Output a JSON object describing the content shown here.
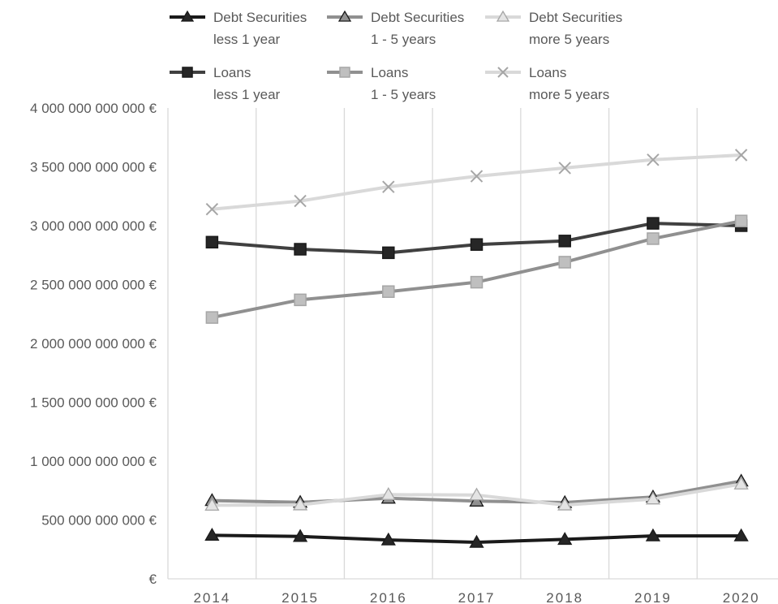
{
  "chart_data": {
    "type": "line",
    "title": "",
    "xlabel": "",
    "ylabel": "",
    "categories": [
      "2014",
      "2015",
      "2016",
      "2017",
      "2018",
      "2019",
      "2020"
    ],
    "ylim": [
      0,
      4000000000000
    ],
    "y_ticks": [
      {
        "value": 0,
        "label": "€"
      },
      {
        "value": 500000000000,
        "label": "500 000 000 000 €"
      },
      {
        "value": 1000000000000,
        "label": "1 000 000 000 000 €"
      },
      {
        "value": 1500000000000,
        "label": "1 500 000 000 000 €"
      },
      {
        "value": 2000000000000,
        "label": "2 000 000 000 000 €"
      },
      {
        "value": 2500000000000,
        "label": "2 500 000 000 000 €"
      },
      {
        "value": 3000000000000,
        "label": "3 000 000 000 000 €"
      },
      {
        "value": 3500000000000,
        "label": "3 500 000 000 000 €"
      },
      {
        "value": 4000000000000,
        "label": "4 000 000 000 000 €"
      }
    ],
    "grid": "vertical",
    "legend_position": "top",
    "series": [
      {
        "name": "Debt Securities less 1 year",
        "legend_lines": [
          "Debt Securities",
          "less 1 year"
        ],
        "color": "#1a1a1a",
        "marker": "triangle-filled",
        "marker_fill": "#262626",
        "values": [
          370000000000,
          360000000000,
          330000000000,
          310000000000,
          335000000000,
          365000000000,
          365000000000
        ]
      },
      {
        "name": "Debt Securities 1 - 5 years",
        "legend_lines": [
          "Debt Securities",
          "1 - 5 years"
        ],
        "color": "#909090",
        "marker": "triangle-filled",
        "marker_fill": "#909090",
        "values": [
          665000000000,
          650000000000,
          685000000000,
          660000000000,
          648000000000,
          695000000000,
          830000000000
        ]
      },
      {
        "name": "Debt Securities more 5 years",
        "legend_lines": [
          "Debt Securities",
          "more 5 years"
        ],
        "color": "#d9d9d9",
        "marker": "triangle-open",
        "marker_fill": "#e4e4e4",
        "values": [
          625000000000,
          628000000000,
          715000000000,
          712000000000,
          627000000000,
          678000000000,
          805000000000
        ]
      },
      {
        "name": "Loans less 1 year",
        "legend_lines": [
          "Loans",
          "less 1 year"
        ],
        "color": "#404040",
        "marker": "square",
        "marker_fill": "#262626",
        "values": [
          2860000000000,
          2800000000000,
          2770000000000,
          2840000000000,
          2870000000000,
          3020000000000,
          3000000000000
        ]
      },
      {
        "name": "Loans 1 - 5 years",
        "legend_lines": [
          "Loans",
          "1 - 5 years"
        ],
        "color": "#909090",
        "marker": "square",
        "marker_fill": "#bfbfbf",
        "values": [
          2220000000000,
          2370000000000,
          2440000000000,
          2520000000000,
          2690000000000,
          2890000000000,
          3040000000000
        ]
      },
      {
        "name": "Loans more 5 years",
        "legend_lines": [
          "Loans",
          "more 5 years"
        ],
        "color": "#d9d9d9",
        "marker": "cross",
        "marker_fill": "#d9d9d9",
        "values": [
          3140000000000,
          3210000000000,
          3330000000000,
          3420000000000,
          3490000000000,
          3560000000000,
          3600000000000
        ]
      }
    ]
  }
}
